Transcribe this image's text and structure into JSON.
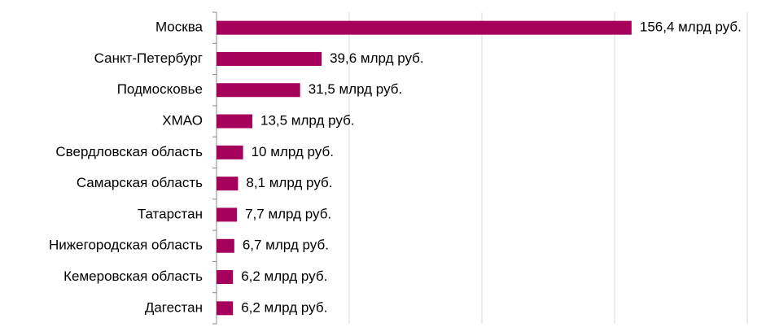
{
  "chart_data": {
    "type": "barh",
    "categories": [
      "Москва",
      "Санкт-Петербург",
      "Подмосковье",
      "ХМАО",
      "Свердловская область",
      "Самарская область",
      "Татарстан",
      "Нижегородская область",
      "Кемеровская область",
      "Дагестан"
    ],
    "values": [
      156.4,
      39.6,
      31.5,
      13.5,
      10,
      8.1,
      7.7,
      6.7,
      6.2,
      6.2
    ],
    "value_labels": [
      "156,4 млрд руб.",
      "39,6 млрд руб.",
      "31,5 млрд руб.",
      "13,5 млрд руб.",
      "10 млрд руб.",
      "8,1 млрд руб.",
      "7,7 млрд руб.",
      "6,7 млрд руб.",
      "6,2 млрд руб.",
      "6,2 млрд руб."
    ],
    "color": "#a5005a",
    "xlim": [
      0,
      200
    ],
    "xticks": [
      50,
      100,
      150,
      200
    ],
    "grid": true
  }
}
